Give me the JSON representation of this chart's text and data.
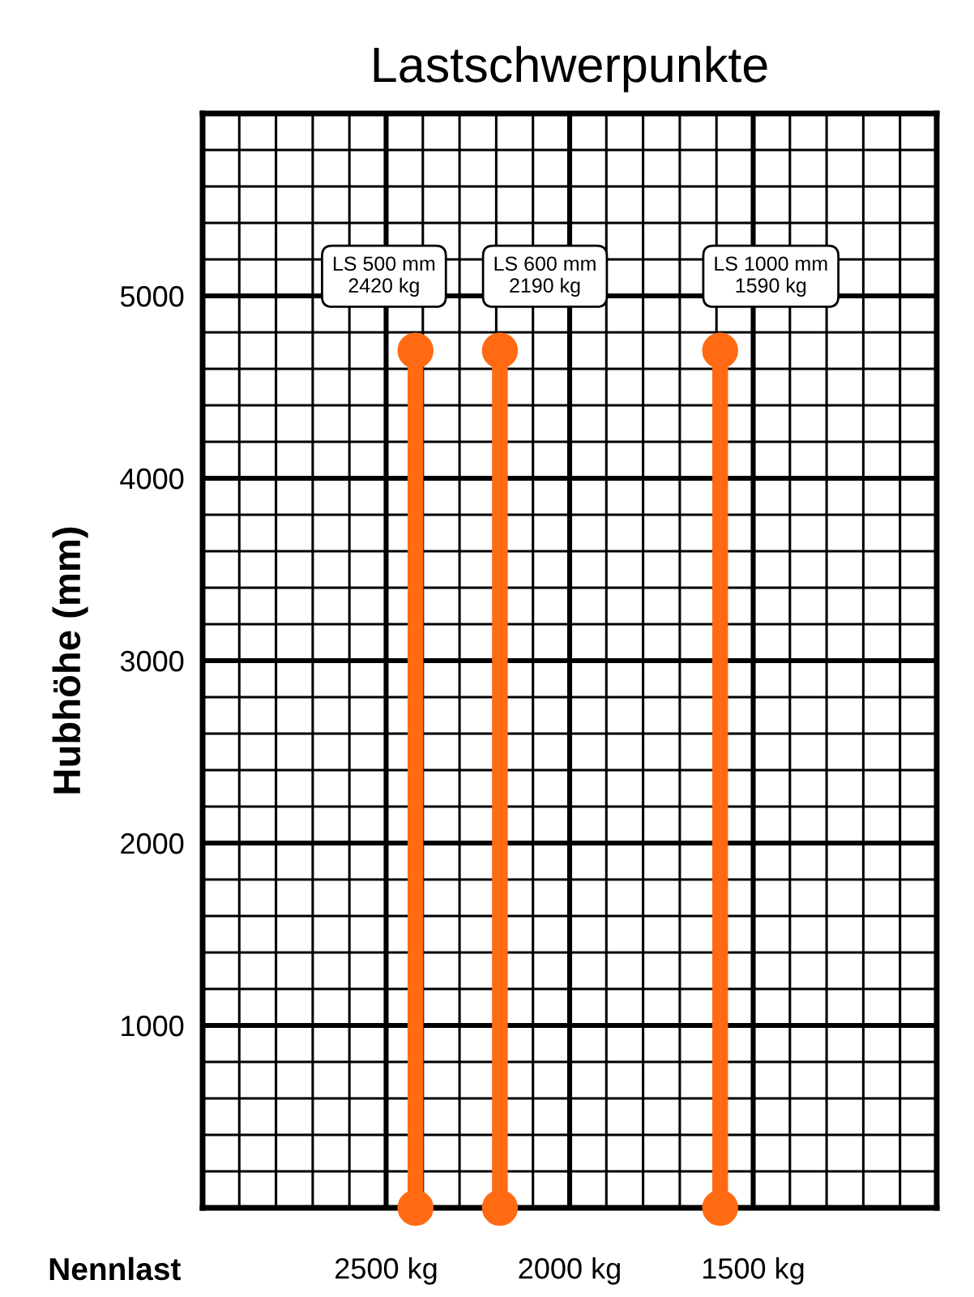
{
  "chart_data": {
    "type": "line",
    "title": "Lastschwerpunkte",
    "xlabel": "Nennlast",
    "ylabel": "Hubhöhe (mm)",
    "xlim": [
      3000,
      1000
    ],
    "xticks": [
      {
        "value": 2500,
        "label": "2500 kg"
      },
      {
        "value": 2000,
        "label": "2000 kg"
      },
      {
        "value": 1500,
        "label": "1500 kg"
      }
    ],
    "ylim": [
      0,
      6000
    ],
    "yticks": [
      1000,
      2000,
      3000,
      4000,
      5000
    ],
    "grid": true,
    "marker": "circle",
    "line_style": "solid",
    "series": [
      {
        "color": "#ff6a13",
        "x": [
          2420,
          2420
        ],
        "values": [
          0,
          4700
        ]
      },
      {
        "color": "#ff6a13",
        "x": [
          2190,
          2190
        ],
        "values": [
          0,
          4700
        ]
      },
      {
        "color": "#ff6a13",
        "x": [
          1590,
          1590
        ],
        "values": [
          0,
          4700
        ]
      }
    ],
    "annotations": [
      {
        "text": "LS 500 mm\n2420 kg",
        "x": 2420,
        "y": 4700
      },
      {
        "text": "LS 600 mm\n2190 kg",
        "x": 2190,
        "y": 4700
      },
      {
        "text": "LS 1000 mm\n1590 kg",
        "x": 1590,
        "y": 4700
      }
    ]
  }
}
